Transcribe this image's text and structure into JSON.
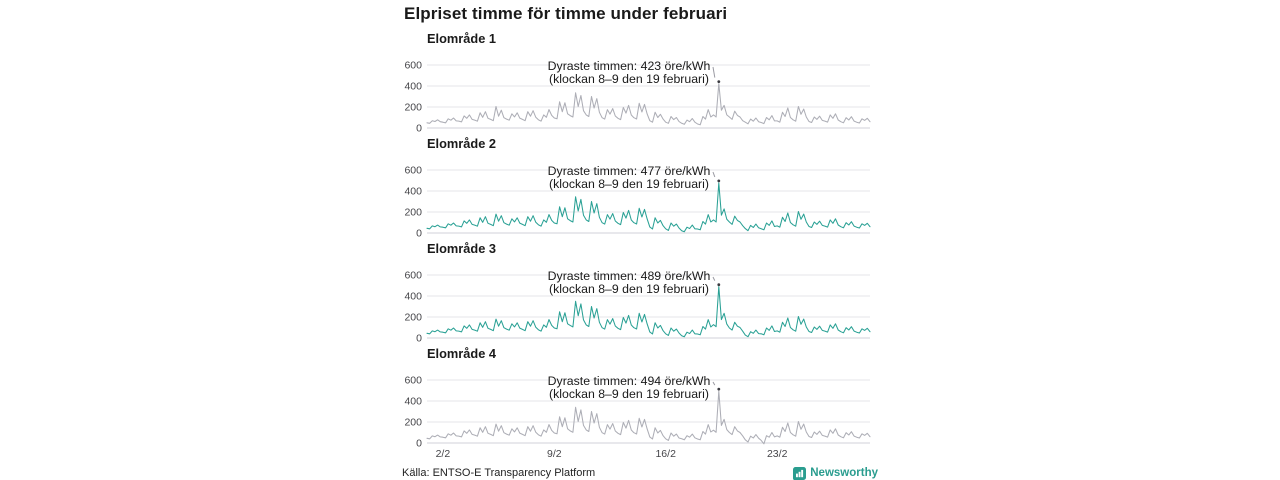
{
  "title": "Elpriset timme för timme under februari",
  "source": "Källa: ENTSO-E Transparency Platform",
  "logo": {
    "text": "Newsworthy",
    "icon": "bar-chart-bubble-icon",
    "color": "#2a9d8f"
  },
  "colors": {
    "teal_line": "#2aa195",
    "gray_line": "#adaeb6",
    "grid_line": "#e4e4e9",
    "zero_line": "#d2d2d8",
    "annotation_text": "#1a1a1a",
    "pointer": "#9a9aa2",
    "peak_dot": "#3a3a40"
  },
  "x_axis": {
    "ticks": [
      {
        "label": "2/2",
        "hour": 24
      },
      {
        "label": "9/2",
        "hour": 192
      },
      {
        "label": "16/2",
        "hour": 360
      },
      {
        "label": "23/2",
        "hour": 528
      }
    ],
    "hours_total": 668
  },
  "chart_data": [
    {
      "type": "line",
      "title": "Elområde 1",
      "color": "#adaeb6",
      "unit": "öre/kWh",
      "ylim": [
        0,
        600
      ],
      "yticks": [
        0,
        200,
        400,
        600
      ],
      "sample_interval_hours": 4,
      "annotation": {
        "line1": "Dyraste timmen: 423 öre/kWh",
        "line2": "(klockan 8–9 den 19 februari)",
        "peak_value": 423,
        "peak_hour": 440
      },
      "show_x_axis": false,
      "values": [
        50,
        45,
        70,
        62,
        78,
        60,
        55,
        50,
        88,
        74,
        95,
        68,
        66,
        58,
        115,
        92,
        125,
        82,
        75,
        65,
        145,
        102,
        155,
        92,
        82,
        70,
        205,
        112,
        170,
        98,
        85,
        74,
        135,
        106,
        145,
        94,
        82,
        70,
        155,
        112,
        165,
        102,
        78,
        66,
        125,
        102,
        175,
        120,
        95,
        88,
        250,
        155,
        240,
        135,
        118,
        105,
        335,
        205,
        310,
        165,
        125,
        110,
        300,
        190,
        280,
        150,
        98,
        85,
        175,
        132,
        185,
        114,
        92,
        80,
        195,
        142,
        215,
        124,
        98,
        86,
        235,
        152,
        225,
        132,
        70,
        55,
        150,
        100,
        130,
        85,
        55,
        45,
        110,
        80,
        100,
        62,
        45,
        35,
        75,
        60,
        90,
        55,
        38,
        30,
        110,
        85,
        175,
        105,
        125,
        105,
        423,
        170,
        215,
        125,
        105,
        82,
        160,
        120,
        105,
        70,
        55,
        40,
        85,
        65,
        95,
        60,
        52,
        42,
        100,
        78,
        118,
        68,
        68,
        55,
        150,
        110,
        190,
        100,
        78,
        65,
        205,
        130,
        180,
        105,
        62,
        52,
        105,
        82,
        112,
        72,
        66,
        56,
        125,
        92,
        135,
        76,
        60,
        50,
        98,
        76,
        108,
        66,
        55,
        48,
        88,
        72,
        92,
        60
      ]
    },
    {
      "type": "line",
      "title": "Elområde 2",
      "color": "#2aa195",
      "unit": "öre/kWh",
      "ylim": [
        0,
        600
      ],
      "yticks": [
        0,
        200,
        400,
        600
      ],
      "sample_interval_hours": 4,
      "annotation": {
        "line1": "Dyraste timmen: 477 öre/kWh",
        "line2": "(klockan 8–9 den 19 februari)",
        "peak_value": 477,
        "peak_hour": 440
      },
      "show_x_axis": false,
      "values": [
        45,
        40,
        68,
        60,
        75,
        58,
        55,
        50,
        88,
        74,
        95,
        68,
        66,
        58,
        115,
        92,
        125,
        82,
        75,
        65,
        145,
        102,
        155,
        92,
        82,
        70,
        180,
        112,
        165,
        98,
        85,
        74,
        135,
        106,
        145,
        94,
        82,
        70,
        155,
        112,
        165,
        102,
        78,
        66,
        125,
        102,
        175,
        120,
        95,
        88,
        250,
        155,
        240,
        135,
        118,
        105,
        345,
        210,
        320,
        170,
        125,
        110,
        300,
        190,
        280,
        150,
        98,
        85,
        175,
        132,
        185,
        114,
        92,
        80,
        195,
        142,
        215,
        124,
        98,
        86,
        235,
        152,
        225,
        132,
        58,
        38,
        145,
        95,
        120,
        70,
        40,
        25,
        95,
        65,
        85,
        48,
        22,
        12,
        55,
        42,
        75,
        40,
        38,
        30,
        110,
        85,
        175,
        105,
        125,
        105,
        477,
        170,
        230,
        130,
        105,
        82,
        160,
        120,
        105,
        70,
        42,
        22,
        72,
        52,
        85,
        50,
        40,
        30,
        95,
        72,
        115,
        62,
        68,
        55,
        150,
        110,
        190,
        100,
        78,
        65,
        205,
        130,
        180,
        105,
        62,
        52,
        105,
        82,
        112,
        72,
        66,
        56,
        125,
        92,
        135,
        76,
        60,
        50,
        98,
        76,
        108,
        66,
        55,
        48,
        88,
        72,
        92,
        60
      ]
    },
    {
      "type": "line",
      "title": "Elområde 3",
      "color": "#2aa195",
      "unit": "öre/kWh",
      "ylim": [
        0,
        600
      ],
      "yticks": [
        0,
        200,
        400,
        600
      ],
      "sample_interval_hours": 4,
      "annotation": {
        "line1": "Dyraste timmen: 489 öre/kWh",
        "line2": "(klockan 8–9 den 19 februari)",
        "peak_value": 489,
        "peak_hour": 440
      },
      "show_x_axis": false,
      "values": [
        45,
        40,
        68,
        60,
        75,
        58,
        55,
        50,
        88,
        74,
        95,
        68,
        66,
        58,
        115,
        92,
        125,
        82,
        75,
        65,
        145,
        102,
        155,
        92,
        82,
        70,
        180,
        112,
        165,
        98,
        85,
        74,
        135,
        106,
        145,
        94,
        82,
        70,
        155,
        112,
        165,
        102,
        78,
        66,
        125,
        102,
        175,
        120,
        95,
        88,
        250,
        155,
        240,
        135,
        120,
        106,
        350,
        212,
        325,
        172,
        125,
        110,
        300,
        190,
        280,
        150,
        98,
        85,
        175,
        132,
        185,
        114,
        92,
        80,
        195,
        142,
        215,
        124,
        98,
        86,
        235,
        152,
        225,
        132,
        58,
        38,
        145,
        95,
        120,
        70,
        40,
        25,
        95,
        65,
        85,
        48,
        22,
        12,
        55,
        42,
        75,
        40,
        38,
        30,
        110,
        85,
        175,
        105,
        128,
        108,
        489,
        175,
        235,
        132,
        95,
        75,
        150,
        112,
        100,
        65,
        28,
        12,
        60,
        45,
        75,
        42,
        40,
        30,
        95,
        72,
        115,
        62,
        68,
        55,
        150,
        110,
        190,
        100,
        78,
        65,
        205,
        130,
        180,
        105,
        62,
        52,
        105,
        82,
        112,
        72,
        66,
        56,
        125,
        92,
        135,
        76,
        60,
        50,
        98,
        76,
        108,
        66,
        55,
        48,
        88,
        72,
        92,
        60
      ]
    },
    {
      "type": "line",
      "title": "Elområde 4",
      "color": "#adaeb6",
      "unit": "öre/kWh",
      "ylim": [
        0,
        600
      ],
      "yticks": [
        0,
        200,
        400,
        600
      ],
      "sample_interval_hours": 4,
      "annotation": {
        "line1": "Dyraste timmen: 494 öre/kWh",
        "line2": "(klockan 8–9 den 19 februari)",
        "peak_value": 494,
        "peak_hour": 440
      },
      "show_x_axis": true,
      "values": [
        45,
        40,
        68,
        60,
        75,
        58,
        55,
        50,
        88,
        74,
        95,
        68,
        66,
        58,
        115,
        92,
        125,
        82,
        75,
        65,
        145,
        102,
        155,
        92,
        82,
        70,
        180,
        112,
        165,
        98,
        85,
        74,
        135,
        106,
        145,
        94,
        82,
        70,
        155,
        112,
        165,
        102,
        78,
        66,
        125,
        102,
        175,
        120,
        95,
        88,
        250,
        155,
        240,
        135,
        115,
        102,
        340,
        205,
        315,
        168,
        125,
        110,
        300,
        190,
        280,
        150,
        98,
        85,
        175,
        132,
        185,
        114,
        92,
        80,
        195,
        142,
        215,
        124,
        98,
        86,
        235,
        152,
        225,
        132,
        58,
        38,
        145,
        95,
        120,
        70,
        40,
        25,
        95,
        65,
        85,
        48,
        40,
        30,
        70,
        55,
        85,
        50,
        38,
        30,
        110,
        85,
        175,
        105,
        122,
        102,
        494,
        168,
        225,
        128,
        100,
        80,
        155,
        115,
        100,
        68,
        30,
        10,
        65,
        48,
        80,
        46,
        25,
        -8,
        70,
        55,
        100,
        58,
        68,
        55,
        150,
        110,
        190,
        100,
        78,
        65,
        205,
        130,
        180,
        105,
        62,
        52,
        105,
        82,
        112,
        72,
        66,
        56,
        125,
        92,
        135,
        76,
        60,
        50,
        98,
        76,
        108,
        66,
        55,
        48,
        88,
        72,
        92,
        60
      ]
    }
  ]
}
